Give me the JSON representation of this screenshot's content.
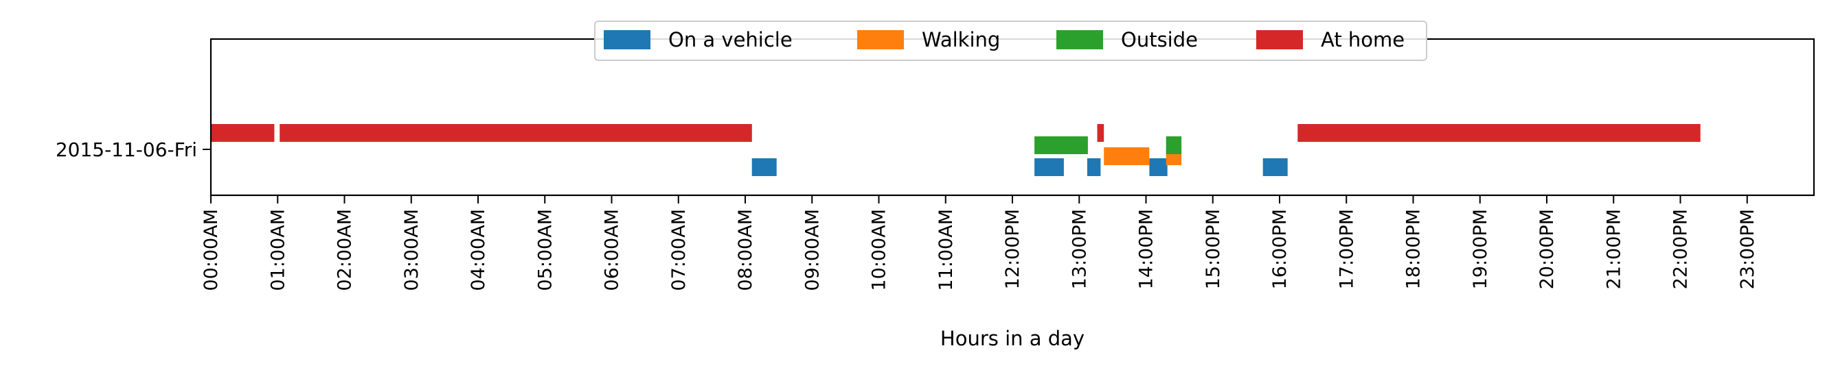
{
  "chart_data": {
    "type": "timeline",
    "title": "",
    "xlabel": "Hours in a day",
    "ylabel": "",
    "xlim": [
      0,
      24
    ],
    "grid": false,
    "legend_placement": "top-center",
    "categories": [
      "2015-11-06-Fri"
    ],
    "x_tick_labels": [
      "00:00AM",
      "01:00AM",
      "02:00AM",
      "03:00AM",
      "04:00AM",
      "05:00AM",
      "06:00AM",
      "07:00AM",
      "08:00AM",
      "09:00AM",
      "10:00AM",
      "11:00AM",
      "12:00PM",
      "13:00PM",
      "14:00PM",
      "15:00PM",
      "16:00PM",
      "17:00PM",
      "18:00PM",
      "19:00PM",
      "20:00PM",
      "21:00PM",
      "22:00PM",
      "23:00PM"
    ],
    "series": [
      {
        "name": "On a vehicle",
        "color": "#1f77b4",
        "lane": 0,
        "intervals": [
          [
            8.1,
            8.47
          ],
          [
            12.33,
            12.77
          ],
          [
            13.12,
            13.32
          ],
          [
            14.05,
            14.32
          ],
          [
            15.75,
            16.12
          ]
        ]
      },
      {
        "name": "Walking",
        "color": "#ff7f0e",
        "lane": 1,
        "intervals": [
          [
            13.37,
            14.05
          ],
          [
            14.3,
            14.53
          ]
        ]
      },
      {
        "name": "Outside",
        "color": "#2ca02c",
        "lane": 2,
        "intervals": [
          [
            12.33,
            13.13
          ],
          [
            14.3,
            14.53
          ]
        ]
      },
      {
        "name": "At home",
        "color": "#d62728",
        "lane": 3,
        "intervals": [
          [
            0.0,
            0.95
          ],
          [
            1.03,
            8.1
          ],
          [
            13.27,
            13.37
          ],
          [
            16.27,
            22.3
          ]
        ]
      }
    ]
  }
}
